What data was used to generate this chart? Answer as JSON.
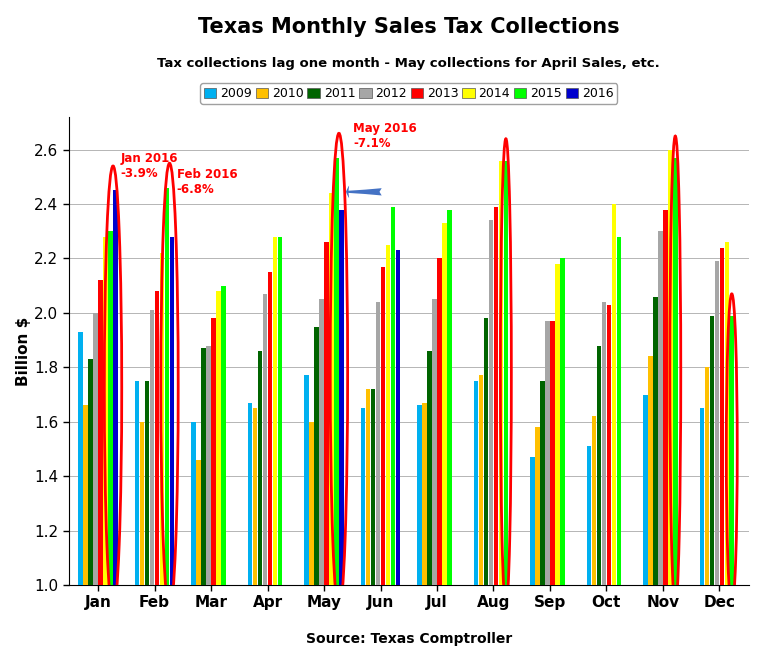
{
  "title": "Texas Monthly Sales Tax Collections",
  "subtitle": "Tax collections lag one month - May collections for April Sales, etc.",
  "source_label": "Source: Texas Comptroller",
  "ylabel": "Billion $",
  "ylim": [
    1.0,
    2.72
  ],
  "yticks": [
    1.0,
    1.2,
    1.4,
    1.6,
    1.8,
    2.0,
    2.2,
    2.4,
    2.6
  ],
  "months": [
    "Jan",
    "Feb",
    "Mar",
    "Apr",
    "May",
    "Jun",
    "Jul",
    "Aug",
    "Sep",
    "Oct",
    "Nov",
    "Dec"
  ],
  "years": [
    "2009",
    "2010",
    "2011",
    "2012",
    "2013",
    "2014",
    "2015",
    "2016"
  ],
  "colors": [
    "#00B0F0",
    "#FFC000",
    "#006400",
    "#A6A6A6",
    "#FF0000",
    "#FFFF00",
    "#00FF00",
    "#0000CD"
  ],
  "data": {
    "2009": [
      1.93,
      1.75,
      1.6,
      1.67,
      1.77,
      1.65,
      1.66,
      1.75,
      1.47,
      1.51,
      1.7,
      1.65
    ],
    "2010": [
      1.66,
      1.6,
      1.46,
      1.65,
      1.6,
      1.72,
      1.67,
      1.77,
      1.58,
      1.62,
      1.84,
      1.8
    ],
    "2011": [
      1.83,
      1.75,
      1.87,
      1.86,
      1.95,
      1.72,
      1.86,
      1.98,
      1.75,
      1.88,
      2.06,
      1.99
    ],
    "2012": [
      2.0,
      2.01,
      1.88,
      2.07,
      2.05,
      2.04,
      2.05,
      2.34,
      1.97,
      2.04,
      2.3,
      2.19
    ],
    "2013": [
      2.12,
      2.08,
      1.98,
      2.15,
      2.26,
      2.17,
      2.2,
      2.39,
      1.97,
      2.03,
      2.38,
      2.24
    ],
    "2014": [
      2.28,
      2.22,
      2.08,
      2.28,
      2.44,
      2.25,
      2.33,
      2.56,
      2.18,
      2.4,
      2.6,
      2.26
    ],
    "2015": [
      2.3,
      2.46,
      2.1,
      2.28,
      2.57,
      2.39,
      2.38,
      2.56,
      2.2,
      2.28,
      2.57,
      1.99
    ],
    "2016": [
      2.45,
      2.28,
      null,
      null,
      2.38,
      2.23,
      null,
      null,
      null,
      null,
      null,
      null
    ]
  },
  "circle_months": [
    0,
    1,
    4,
    7,
    10,
    11
  ],
  "background_color": "#FFFFFF"
}
